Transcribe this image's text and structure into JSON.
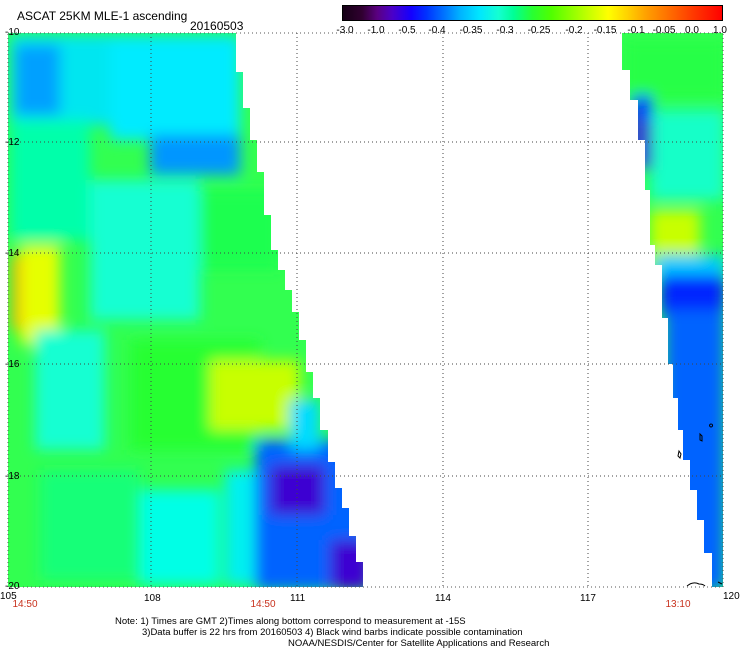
{
  "header": {
    "title": "ASCAT 25KM MLE-1 ascending",
    "date": "20160503"
  },
  "colorbar": {
    "labels": [
      "-3.0",
      "-1.0",
      "-0.5",
      "-0.4",
      "-0.35",
      "-0.3",
      "-0.25",
      "-0.2",
      "-0.15",
      "-0.1",
      "-0.05",
      "0.0",
      "1.0"
    ]
  },
  "axes": {
    "lat_labels": [
      "-10",
      "-12",
      "-14",
      "-16",
      "-18",
      "-20"
    ],
    "lon_labels": [
      "105",
      "108",
      "111",
      "114",
      "117",
      "120"
    ]
  },
  "times": [
    "14:50",
    "14:50",
    "13:10"
  ],
  "notes": {
    "line1": "Note: 1) Times are GMT 2)Times along bottom correspond to measurement at -15S",
    "line2": "3)Data buffer is 22 hrs from 20160503 4) Black wind barbs indicate possible contamination",
    "line3": "NOAA/NESDIS/Center for Satellite Applications and Research"
  },
  "colors": {
    "cyan": "#00f0f0",
    "green": "#28ff32",
    "yellow_green": "#a0ff00",
    "blue": "#0064ff",
    "dark_blue": "#2800c8",
    "orange": "#ffa000",
    "time_red": "#c8321e"
  }
}
